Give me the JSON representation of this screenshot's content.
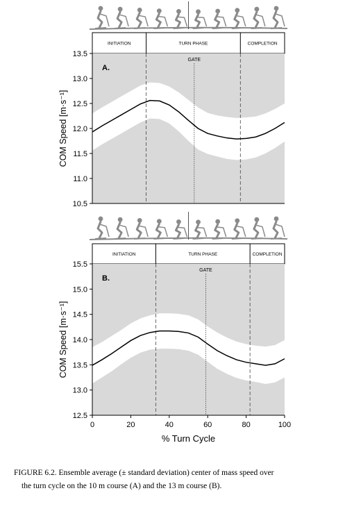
{
  "chart_data": [
    {
      "type": "line",
      "panel_label": "A.",
      "phases": [
        "INITIATION",
        "TURN PHASE",
        "COMPLETION"
      ],
      "phase_boundaries": [
        28,
        77
      ],
      "gate_label": "GATE",
      "gate_x": 53,
      "ylabel": "COM Speed [m·s⁻¹]",
      "xlabel": "",
      "xlim": [
        0,
        100
      ],
      "ylim": [
        10.5,
        13.5
      ],
      "yticks": [
        10.5,
        11.0,
        11.5,
        12.0,
        12.5,
        13.0,
        13.5
      ],
      "ytick_labels": [
        "10.5",
        "11.0",
        "11.5",
        "12.0",
        "12.5",
        "13.0",
        "13.5"
      ],
      "x": [
        0,
        5,
        10,
        15,
        20,
        25,
        30,
        35,
        40,
        45,
        50,
        55,
        60,
        65,
        70,
        75,
        80,
        85,
        90,
        95,
        100
      ],
      "mean": [
        11.93,
        12.05,
        12.16,
        12.27,
        12.38,
        12.49,
        12.56,
        12.55,
        12.47,
        12.33,
        12.16,
        12.0,
        11.9,
        11.85,
        11.81,
        11.79,
        11.8,
        11.83,
        11.9,
        12.0,
        12.12
      ],
      "sd": [
        0.37,
        0.37,
        0.37,
        0.37,
        0.37,
        0.37,
        0.36,
        0.36,
        0.37,
        0.39,
        0.41,
        0.42,
        0.41,
        0.41,
        0.42,
        0.42,
        0.42,
        0.41,
        0.4,
        0.39,
        0.38
      ]
    },
    {
      "type": "line",
      "panel_label": "B.",
      "phases": [
        "INITIATION",
        "TURN PHASE",
        "COMPLETION"
      ],
      "phase_boundaries": [
        33,
        82
      ],
      "gate_label": "GATE",
      "gate_x": 59,
      "ylabel": "COM Speed [m·s⁻¹]",
      "xlabel": "% Turn Cycle",
      "xlim": [
        0,
        100
      ],
      "ylim": [
        12.5,
        15.5
      ],
      "yticks": [
        12.5,
        13.0,
        13.5,
        14.0,
        14.5,
        15.0,
        15.5
      ],
      "ytick_labels": [
        "12.5",
        "13.0",
        "13.5",
        "14.0",
        "14.5",
        "15.0",
        "15.5"
      ],
      "xticks": [
        0,
        20,
        40,
        60,
        80,
        100
      ],
      "xtick_labels": [
        "0",
        "20",
        "40",
        "60",
        "80",
        "100"
      ],
      "x": [
        0,
        5,
        10,
        15,
        20,
        25,
        30,
        35,
        40,
        45,
        50,
        55,
        60,
        65,
        70,
        75,
        80,
        85,
        90,
        95,
        100
      ],
      "mean": [
        13.49,
        13.6,
        13.72,
        13.85,
        13.98,
        14.08,
        14.14,
        14.17,
        14.17,
        14.16,
        14.13,
        14.05,
        13.91,
        13.78,
        13.68,
        13.6,
        13.55,
        13.52,
        13.49,
        13.52,
        13.62
      ],
      "sd": [
        0.36,
        0.35,
        0.35,
        0.34,
        0.34,
        0.34,
        0.34,
        0.35,
        0.35,
        0.35,
        0.35,
        0.35,
        0.35,
        0.36,
        0.36,
        0.36,
        0.36,
        0.36,
        0.37,
        0.37,
        0.37
      ]
    }
  ],
  "caption": {
    "line1": "FIGURE 6.2.  Ensemble average (± standard deviation) center of mass speed over",
    "line2": "the turn cycle on the 10 m course (A) and the 13 m course (B)."
  },
  "colors": {
    "shade": "#d9d9d9",
    "band": "#ffffff",
    "line": "#000000",
    "axis": "#000000",
    "skier": "#8a8a8a"
  },
  "icons": [
    "skier-sequence-a",
    "skier-sequence-b"
  ]
}
